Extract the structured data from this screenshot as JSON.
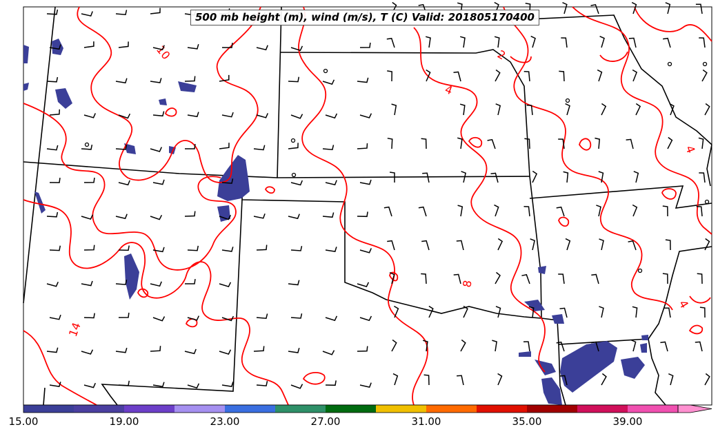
{
  "title": "500 mb height (m), wind (m/s), T (C) Valid: 201805170400",
  "contour_labels": [
    "10",
    "4",
    "4",
    "8",
    "14",
    "4",
    "2"
  ],
  "colorbar": {
    "labels": [
      "15.00",
      "19.00",
      "23.00",
      "27.00",
      "31.00",
      "35.00",
      "39.00"
    ],
    "colors": [
      "#3b3f98",
      "#4a3fa0",
      "#6c3fc8",
      "#a590f0",
      "#3a6ee0",
      "#2e9068",
      "#006b10",
      "#f0c000",
      "#ff6a00",
      "#e01000",
      "#a00000",
      "#d0105a",
      "#f050b0",
      "#ff90d0"
    ]
  },
  "colors": {
    "temperature_contour": "#ff0000",
    "wind_barb": "#000000",
    "state_border": "#000000",
    "precip_shade": "#3b3f98"
  }
}
